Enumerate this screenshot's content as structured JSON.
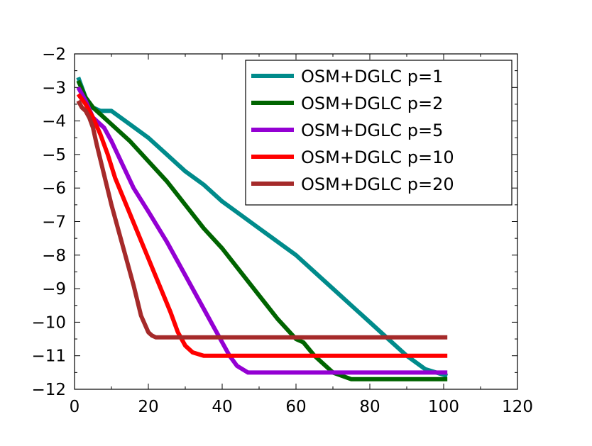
{
  "chart_data": {
    "type": "line",
    "title": "",
    "xlabel": "",
    "ylabel": "",
    "xlim": [
      0,
      120
    ],
    "ylim": [
      -12,
      -2
    ],
    "xticks": [
      0,
      20,
      40,
      60,
      80,
      100,
      120
    ],
    "yticks": [
      -12,
      -11,
      -10,
      -9,
      -8,
      -7,
      -6,
      -5,
      -4,
      -3,
      -2
    ],
    "xtick_labels": [
      "0",
      "20",
      "40",
      "60",
      "80",
      "100",
      "120"
    ],
    "ytick_labels": [
      "−12",
      "−11",
      "−10",
      "−9",
      "−8",
      "−7",
      "−6",
      "−5",
      "−4",
      "−3",
      "−2"
    ],
    "grid": false,
    "legend_position": "top-right",
    "series": [
      {
        "name": "OSM+DGLC p=1",
        "color": "#008b8b",
        "x": [
          1,
          3,
          5,
          7,
          10,
          15,
          20,
          25,
          30,
          35,
          40,
          45,
          50,
          55,
          60,
          65,
          70,
          75,
          80,
          85,
          90,
          95,
          101
        ],
        "y": [
          -2.7,
          -3.3,
          -3.6,
          -3.7,
          -3.7,
          -4.1,
          -4.5,
          -5.0,
          -5.5,
          -5.9,
          -6.4,
          -6.8,
          -7.2,
          -7.6,
          -8.0,
          -8.5,
          -9.0,
          -9.5,
          -10.0,
          -10.5,
          -11.0,
          -11.4,
          -11.6
        ]
      },
      {
        "name": "OSM+DGLC p=2",
        "color": "#006400",
        "x": [
          1,
          3,
          5,
          7,
          10,
          15,
          20,
          25,
          30,
          35,
          40,
          45,
          50,
          55,
          60,
          62,
          65,
          70,
          75,
          80,
          90,
          101
        ],
        "y": [
          -2.8,
          -3.3,
          -3.6,
          -3.8,
          -4.1,
          -4.6,
          -5.2,
          -5.8,
          -6.5,
          -7.2,
          -7.8,
          -8.5,
          -9.2,
          -9.9,
          -10.5,
          -10.6,
          -11.0,
          -11.5,
          -11.7,
          -11.7,
          -11.7,
          -11.7
        ]
      },
      {
        "name": "OSM+DGLC p=5",
        "color": "#9400d3",
        "x": [
          1,
          3,
          5,
          8,
          10,
          13,
          16,
          20,
          25,
          30,
          35,
          38,
          40,
          42,
          44,
          47,
          50,
          60,
          80,
          101
        ],
        "y": [
          -3.0,
          -3.4,
          -3.9,
          -4.2,
          -4.6,
          -5.3,
          -6.0,
          -6.7,
          -7.6,
          -8.6,
          -9.6,
          -10.2,
          -10.6,
          -11.0,
          -11.3,
          -11.5,
          -11.5,
          -11.5,
          -11.5,
          -11.5
        ]
      },
      {
        "name": "OSM+DGLC p=10",
        "color": "#ff0000",
        "x": [
          1,
          3,
          5,
          7,
          9,
          11,
          14,
          17,
          20,
          23,
          26,
          28,
          30,
          32,
          35,
          38,
          50,
          70,
          101
        ],
        "y": [
          -3.2,
          -3.5,
          -3.9,
          -4.4,
          -5.0,
          -5.7,
          -6.5,
          -7.3,
          -8.1,
          -8.9,
          -9.7,
          -10.3,
          -10.7,
          -10.9,
          -11.0,
          -11.0,
          -11.0,
          -11.0,
          -11.0
        ]
      },
      {
        "name": "OSM+DGLC p=20",
        "color": "#a52a2a",
        "x": [
          1,
          2,
          3,
          4,
          5,
          6,
          8,
          10,
          12,
          14,
          16,
          18,
          20,
          21,
          22,
          24,
          26,
          30,
          50,
          101
        ],
        "y": [
          -3.4,
          -3.6,
          -3.7,
          -3.9,
          -4.2,
          -4.7,
          -5.6,
          -6.5,
          -7.3,
          -8.1,
          -8.9,
          -9.8,
          -10.3,
          -10.4,
          -10.45,
          -10.45,
          -10.45,
          -10.45,
          -10.45,
          -10.45
        ]
      }
    ]
  }
}
